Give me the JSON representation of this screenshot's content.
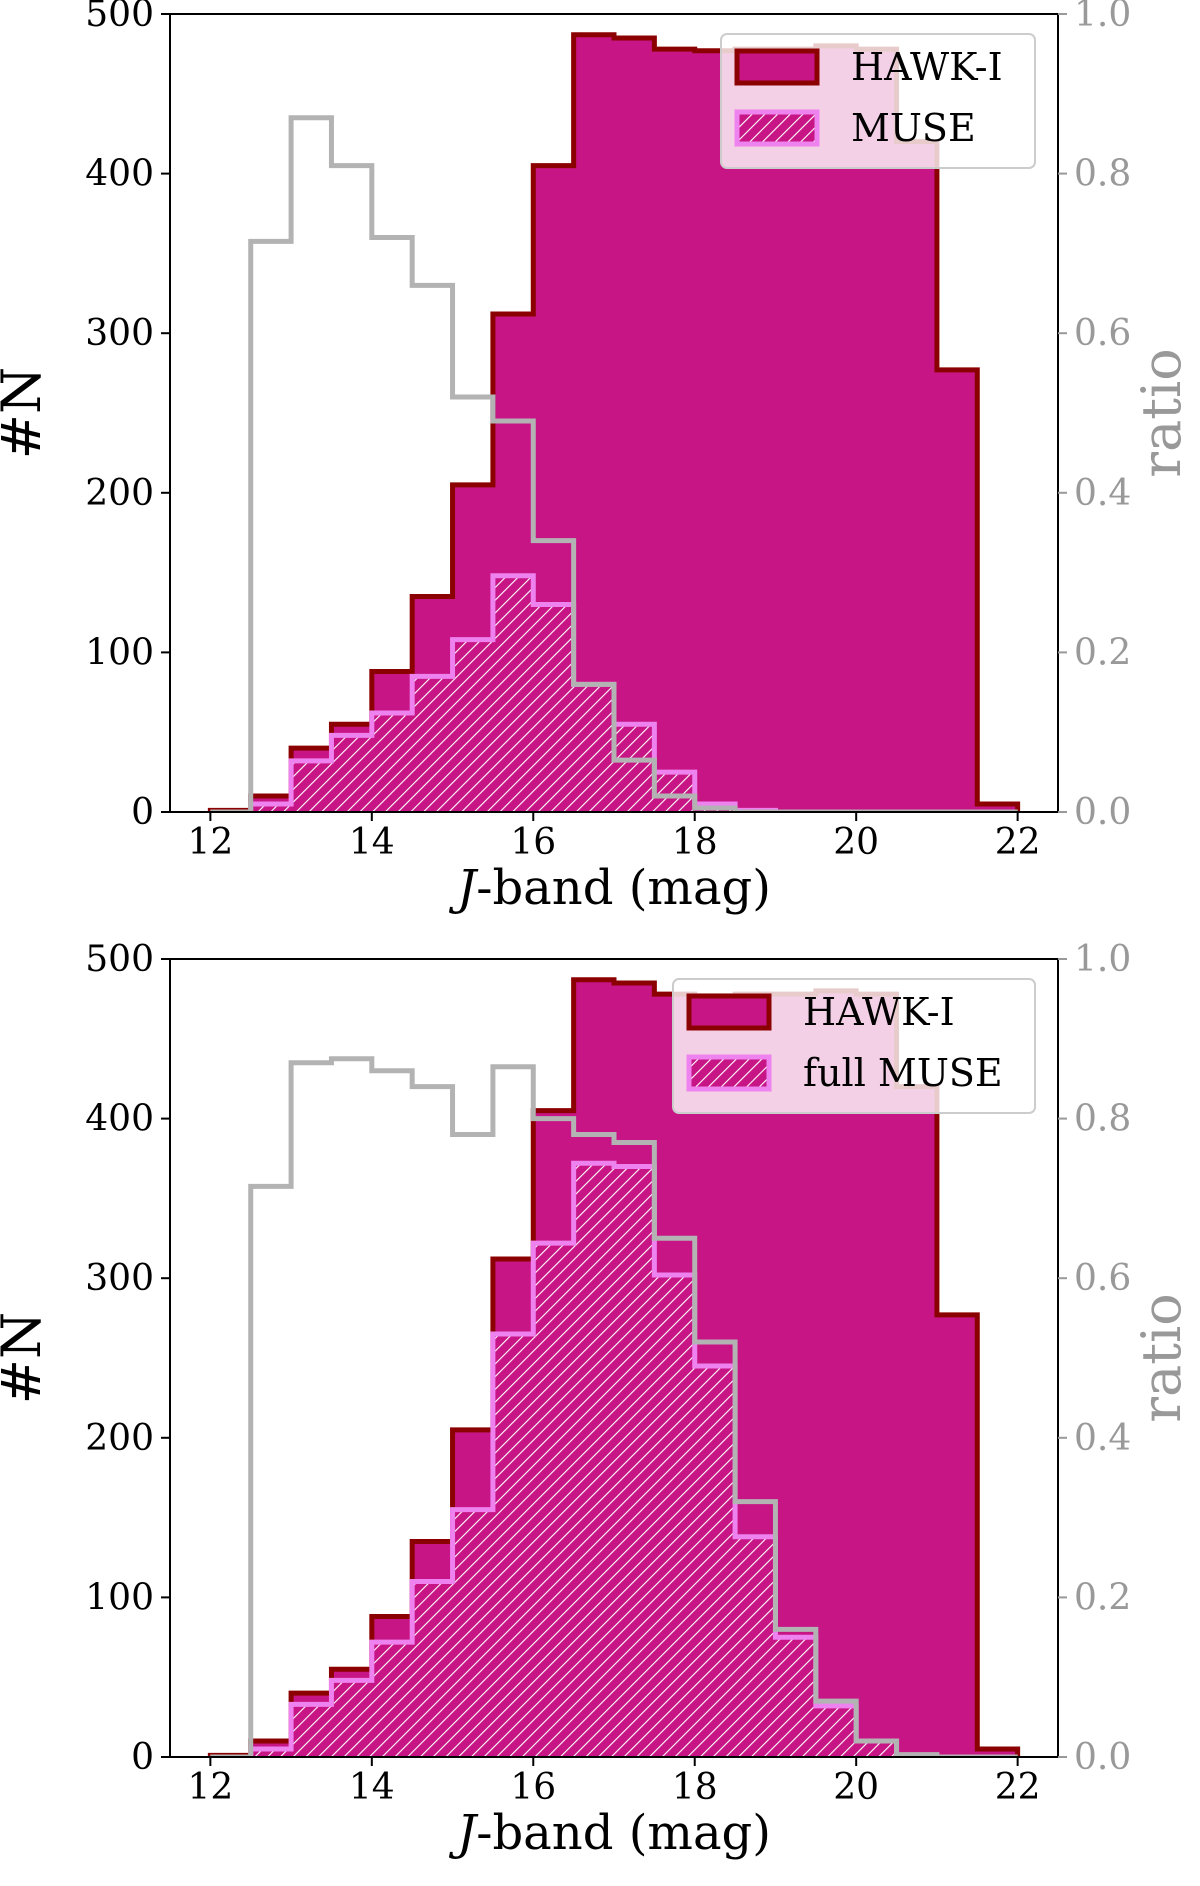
{
  "colors": {
    "hawk_fill": "#c71585",
    "hawk_edge": "#8b0000",
    "muse_fill": "#c71585",
    "muse_edge": "#ee82ee",
    "muse_hatch": "#ffffff",
    "ratio_line": "#b3b3b3",
    "ratio_axis": "#999999",
    "axis": "#000000"
  },
  "chart_data": [
    {
      "type": "histogram",
      "xlabel_italic": "J",
      "xlabel_rest": "-band (mag)",
      "ylabel": "#N",
      "y2label": "ratio",
      "xlim": [
        11.5,
        22.5
      ],
      "ylim": [
        0,
        500
      ],
      "y2lim": [
        0,
        1.0
      ],
      "xticks": [
        "12",
        "14",
        "16",
        "18",
        "20",
        "22"
      ],
      "yticks": [
        "0",
        "100",
        "200",
        "300",
        "400",
        "500"
      ],
      "y2ticks": [
        "0.0",
        "0.2",
        "0.4",
        "0.6",
        "0.8",
        "1.0"
      ],
      "bin_edges": [
        12.0,
        12.5,
        13.0,
        13.5,
        14.0,
        14.5,
        15.0,
        15.5,
        16.0,
        16.5,
        17.0,
        17.5,
        18.0,
        18.5,
        19.0,
        19.5,
        20.0,
        20.5,
        21.0,
        21.5,
        22.0
      ],
      "legend": {
        "position": "upper right",
        "labels": [
          "HAWK-I",
          "MUSE"
        ]
      },
      "series": [
        {
          "name": "HAWK-I",
          "kind": "filled",
          "values": [
            1,
            10,
            40,
            55,
            88,
            135,
            205,
            312,
            405,
            487,
            485,
            478,
            477,
            478,
            478,
            480,
            478,
            420,
            277,
            5
          ]
        },
        {
          "name": "MUSE",
          "kind": "hatched",
          "values": [
            0,
            5,
            32,
            48,
            62,
            85,
            108,
            148,
            130,
            80,
            55,
            25,
            5,
            1,
            0,
            0,
            0,
            0,
            0,
            0
          ]
        },
        {
          "name": "",
          "kind": "ratio",
          "axis": "right",
          "values": [
            0.0,
            0.715,
            0.87,
            0.81,
            0.72,
            0.66,
            0.52,
            0.49,
            0.34,
            0.16,
            0.065,
            0.02,
            0.005,
            0.0,
            0.0,
            0.0,
            0.0,
            0.0,
            0.0,
            0.0
          ]
        }
      ]
    },
    {
      "type": "histogram",
      "xlabel_italic": "J",
      "xlabel_rest": "-band (mag)",
      "ylabel": "#N",
      "y2label": "ratio",
      "xlim": [
        11.5,
        22.5
      ],
      "ylim": [
        0,
        500
      ],
      "y2lim": [
        0,
        1.0
      ],
      "xticks": [
        "12",
        "14",
        "16",
        "18",
        "20",
        "22"
      ],
      "yticks": [
        "0",
        "100",
        "200",
        "300",
        "400",
        "500"
      ],
      "y2ticks": [
        "0.0",
        "0.2",
        "0.4",
        "0.6",
        "0.8",
        "1.0"
      ],
      "bin_edges": [
        12.0,
        12.5,
        13.0,
        13.5,
        14.0,
        14.5,
        15.0,
        15.5,
        16.0,
        16.5,
        17.0,
        17.5,
        18.0,
        18.5,
        19.0,
        19.5,
        20.0,
        20.5,
        21.0,
        21.5,
        22.0
      ],
      "legend": {
        "position": "upper right",
        "labels": [
          "HAWK-I",
          "full MUSE"
        ]
      },
      "series": [
        {
          "name": "HAWK-I",
          "kind": "filled",
          "values": [
            1,
            10,
            40,
            55,
            88,
            135,
            205,
            312,
            405,
            487,
            485,
            478,
            477,
            478,
            478,
            480,
            478,
            420,
            277,
            5
          ]
        },
        {
          "name": "full MUSE",
          "kind": "hatched",
          "values": [
            0,
            5,
            33,
            48,
            72,
            110,
            155,
            265,
            322,
            372,
            370,
            302,
            245,
            138,
            75,
            32,
            10,
            1,
            0,
            0
          ]
        },
        {
          "name": "",
          "kind": "ratio",
          "axis": "right",
          "values": [
            0.0,
            0.715,
            0.87,
            0.875,
            0.86,
            0.84,
            0.78,
            0.865,
            0.8,
            0.78,
            0.77,
            0.65,
            0.52,
            0.32,
            0.16,
            0.07,
            0.02,
            0.003,
            0.0,
            0.0
          ]
        }
      ]
    }
  ]
}
